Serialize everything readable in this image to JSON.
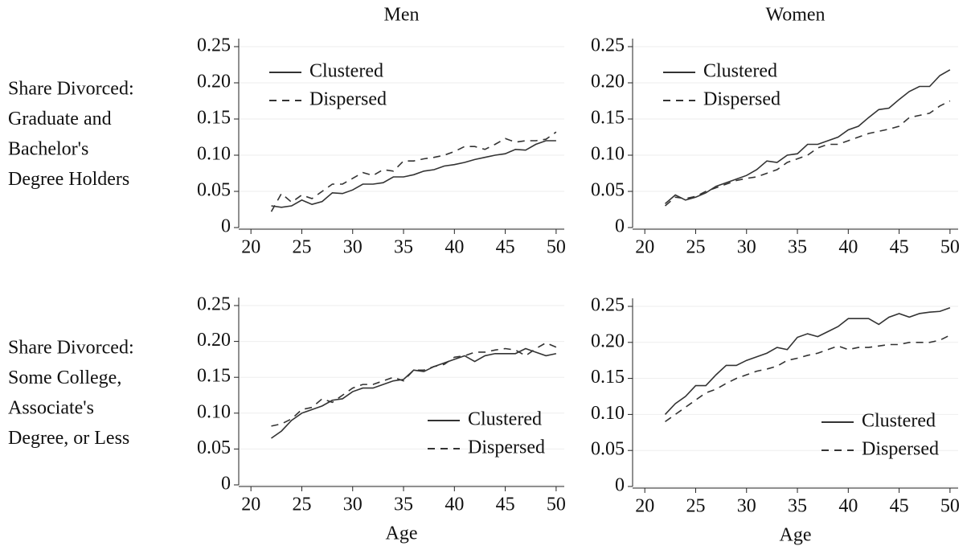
{
  "chart_data": [
    {
      "type": "line",
      "title": "Men",
      "ylabel": [
        "Share Divorced:",
        "Graduate and",
        "Bachelor's",
        "Degree Holders"
      ],
      "x": [
        22,
        23,
        24,
        25,
        26,
        27,
        28,
        29,
        30,
        31,
        32,
        33,
        34,
        35,
        36,
        37,
        38,
        39,
        40,
        41,
        42,
        43,
        44,
        45,
        46,
        47,
        48,
        49,
        50
      ],
      "series": [
        {
          "name": "Clustered",
          "color": "#333333",
          "dash": "solid",
          "values": [
            0.03,
            0.028,
            0.03,
            0.038,
            0.032,
            0.036,
            0.048,
            0.047,
            0.052,
            0.06,
            0.06,
            0.062,
            0.07,
            0.07,
            0.073,
            0.078,
            0.08,
            0.085,
            0.087,
            0.09,
            0.094,
            0.097,
            0.1,
            0.102,
            0.108,
            0.107,
            0.115,
            0.12,
            0.12
          ]
        },
        {
          "name": "Dispersed",
          "color": "#333333",
          "dash": "dashed",
          "values": [
            0.022,
            0.047,
            0.035,
            0.045,
            0.04,
            0.05,
            0.06,
            0.06,
            0.068,
            0.076,
            0.072,
            0.08,
            0.078,
            0.092,
            0.092,
            0.095,
            0.097,
            0.1,
            0.105,
            0.112,
            0.112,
            0.108,
            0.115,
            0.123,
            0.118,
            0.12,
            0.12,
            0.122,
            0.132
          ]
        }
      ],
      "xlim": [
        18.8,
        50.8
      ],
      "xticks": [
        20,
        25,
        30,
        35,
        40,
        45,
        50
      ],
      "ylim": [
        0,
        0.25
      ],
      "yticks": [
        0,
        0.05,
        {
          "value": 0.1,
          "label": "0.10"
        },
        0.15,
        {
          "value": 0.2,
          "label": "0.20"
        },
        0.25
      ],
      "grid": true,
      "legend": "upper left"
    },
    {
      "type": "line",
      "title": "Women",
      "x": [
        22,
        23,
        24,
        25,
        26,
        27,
        28,
        29,
        30,
        31,
        32,
        33,
        34,
        35,
        36,
        37,
        38,
        39,
        40,
        41,
        42,
        43,
        44,
        45,
        46,
        47,
        48,
        49,
        50
      ],
      "series": [
        {
          "name": "Clustered",
          "color": "#333333",
          "dash": "solid",
          "values": [
            0.033,
            0.045,
            0.038,
            0.042,
            0.048,
            0.057,
            0.062,
            0.067,
            0.072,
            0.08,
            0.092,
            0.09,
            0.1,
            0.102,
            0.115,
            0.115,
            0.12,
            0.125,
            0.135,
            0.14,
            0.152,
            0.163,
            0.165,
            0.177,
            0.188,
            0.195,
            0.195,
            0.21,
            0.218
          ]
        },
        {
          "name": "Dispersed",
          "color": "#333333",
          "dash": "dashed",
          "values": [
            0.03,
            0.042,
            0.04,
            0.043,
            0.05,
            0.055,
            0.06,
            0.065,
            0.068,
            0.07,
            0.075,
            0.08,
            0.09,
            0.095,
            0.1,
            0.11,
            0.115,
            0.115,
            0.12,
            0.125,
            0.13,
            0.133,
            0.136,
            0.14,
            0.152,
            0.155,
            0.158,
            0.168,
            0.175
          ]
        }
      ],
      "xlim": [
        18.8,
        50.8
      ],
      "xticks": [
        20,
        25,
        30,
        35,
        40,
        45,
        50
      ],
      "ylim": [
        0,
        0.25
      ],
      "yticks": [
        0,
        0.05,
        {
          "value": 0.1,
          "label": "0.10"
        },
        0.15,
        {
          "value": 0.2,
          "label": "0.20"
        },
        0.25
      ],
      "grid": true,
      "legend": "upper left"
    },
    {
      "type": "line",
      "xlabel": "Age",
      "ylabel": [
        "Share Divorced:",
        "Some College,",
        "Associate's",
        "Degree, or Less"
      ],
      "x": [
        22,
        23,
        24,
        25,
        26,
        27,
        28,
        29,
        30,
        31,
        32,
        33,
        34,
        35,
        36,
        37,
        38,
        39,
        40,
        41,
        42,
        43,
        44,
        45,
        46,
        47,
        48,
        49,
        50
      ],
      "series": [
        {
          "name": "Clustered",
          "color": "#333333",
          "dash": "solid",
          "values": [
            0.065,
            0.075,
            0.09,
            0.1,
            0.105,
            0.11,
            0.118,
            0.12,
            0.13,
            0.135,
            0.135,
            0.14,
            0.145,
            0.147,
            0.16,
            0.158,
            0.165,
            0.17,
            0.175,
            0.18,
            0.172,
            0.18,
            0.183,
            0.183,
            0.183,
            0.19,
            0.185,
            0.18,
            0.183
          ]
        },
        {
          "name": "Dispersed",
          "color": "#333333",
          "dash": "dashed",
          "values": [
            0.082,
            0.085,
            0.092,
            0.105,
            0.108,
            0.12,
            0.115,
            0.125,
            0.135,
            0.14,
            0.14,
            0.145,
            0.15,
            0.145,
            0.16,
            0.16,
            0.165,
            0.168,
            0.178,
            0.18,
            0.185,
            0.185,
            0.188,
            0.19,
            0.188,
            0.18,
            0.19,
            0.198,
            0.192
          ]
        }
      ],
      "xlim": [
        18.8,
        50.8
      ],
      "xticks": [
        20,
        25,
        30,
        35,
        40,
        45,
        50
      ],
      "ylim": [
        0,
        0.25
      ],
      "yticks": [
        0,
        0.05,
        {
          "value": 0.1,
          "label": "0.10"
        },
        0.15,
        {
          "value": 0.2,
          "label": "0.20"
        },
        0.25
      ],
      "grid": true,
      "legend": "lower right"
    },
    {
      "type": "line",
      "xlabel": "Age",
      "x": [
        22,
        23,
        24,
        25,
        26,
        27,
        28,
        29,
        30,
        31,
        32,
        33,
        34,
        35,
        36,
        37,
        38,
        39,
        40,
        41,
        42,
        43,
        44,
        45,
        46,
        47,
        48,
        49,
        50
      ],
      "series": [
        {
          "name": "Clustered",
          "color": "#333333",
          "dash": "solid",
          "values": [
            0.1,
            0.115,
            0.125,
            0.14,
            0.14,
            0.155,
            0.168,
            0.168,
            0.175,
            0.18,
            0.185,
            0.193,
            0.19,
            0.207,
            0.212,
            0.208,
            0.215,
            0.222,
            0.233,
            0.233,
            0.233,
            0.225,
            0.235,
            0.24,
            0.235,
            0.24,
            0.242,
            0.243,
            0.248
          ]
        },
        {
          "name": "Dispersed",
          "color": "#333333",
          "dash": "dashed",
          "values": [
            0.09,
            0.1,
            0.11,
            0.12,
            0.13,
            0.135,
            0.143,
            0.15,
            0.155,
            0.16,
            0.163,
            0.167,
            0.175,
            0.178,
            0.182,
            0.185,
            0.19,
            0.195,
            0.19,
            0.193,
            0.193,
            0.195,
            0.197,
            0.197,
            0.2,
            0.2,
            0.2,
            0.203,
            0.21
          ]
        }
      ],
      "xlim": [
        18.8,
        50.8
      ],
      "xticks": [
        20,
        25,
        30,
        35,
        40,
        45,
        50
      ],
      "ylim": [
        0,
        0.25
      ],
      "yticks": [
        0,
        0.05,
        {
          "value": 0.1,
          "label": "0.10"
        },
        0.15,
        {
          "value": 0.2,
          "label": "0.20"
        },
        0.25
      ],
      "grid": true,
      "legend": "lower right"
    }
  ]
}
